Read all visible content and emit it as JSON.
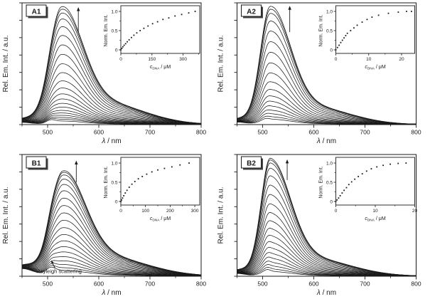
{
  "figure": {
    "background": "#ffffff",
    "line_color": "#1a1a1a",
    "text_color": "#1a1a1a"
  },
  "chart_data": [
    {
      "panel_label": "A1",
      "main": {
        "type": "line",
        "xlabel_symbol": "λ",
        "xlabel_rest": " / nm",
        "ylabel": "Rel. Em. Int. / a.u.",
        "xlim": [
          450,
          800
        ],
        "xticks": [
          500,
          600,
          700,
          800
        ],
        "xminor": [
          450,
          550,
          650,
          750
        ],
        "n_yticks": 8,
        "grid": false,
        "peak_nm": 527,
        "sigma_left": 22,
        "sigma_right": 40,
        "tail_weight": 0.22,
        "tail_sigma": 82,
        "scatter_bump": {
          "center": 506,
          "sigma": 8,
          "height": 0.022,
          "edge": 0.018,
          "edge_sigma": 18
        },
        "ymax_frac": 0.985,
        "amplitudes": [
          0.03,
          0.045,
          0.06,
          0.078,
          0.098,
          0.12,
          0.148,
          0.18,
          0.217,
          0.26,
          0.31,
          0.37,
          0.44,
          0.515,
          0.595,
          0.675,
          0.755,
          0.83,
          0.895,
          0.945,
          0.978,
          1.0
        ],
        "arrow": {
          "x_nm": 560,
          "y_from_frac": 0.76,
          "y_to_frac": 0.965
        },
        "annotation": null
      },
      "inset": {
        "type": "scatter",
        "ylabel": "Norm. Em. Int.",
        "xlabel_symbol": "c",
        "xlabel_sub": "DNA",
        "xlabel_rest": " / μM",
        "xlim": [
          0,
          380
        ],
        "xticks": [
          0,
          150,
          300
        ],
        "xminor": [
          75,
          225,
          375
        ],
        "yticks": [
          0,
          0.5,
          1.0
        ],
        "ytick_labels": [
          "0",
          "0.5",
          "1.0"
        ],
        "yminor": [
          0.25,
          0.75
        ],
        "x": [
          0,
          5,
          10,
          16,
          23,
          31,
          40,
          51,
          63,
          77,
          93,
          111,
          131,
          153,
          177,
          203,
          231,
          261,
          293,
          327,
          358
        ],
        "y": [
          0,
          0.04,
          0.08,
          0.12,
          0.16,
          0.21,
          0.26,
          0.32,
          0.38,
          0.44,
          0.5,
          0.56,
          0.62,
          0.68,
          0.73,
          0.79,
          0.83,
          0.88,
          0.92,
          0.96,
          1.0
        ]
      }
    },
    {
      "panel_label": "A2",
      "main": {
        "type": "line",
        "xlabel_symbol": "λ",
        "xlabel_rest": " / nm",
        "ylabel": "Rel. Em. Int. / a.u.",
        "xlim": [
          450,
          800
        ],
        "xticks": [
          500,
          600,
          700,
          800
        ],
        "xminor": [
          450,
          550,
          650,
          750
        ],
        "n_yticks": 8,
        "grid": false,
        "peak_nm": 515,
        "sigma_left": 19,
        "sigma_right": 38,
        "tail_weight": 0.17,
        "tail_sigma": 78,
        "scatter_bump": {
          "center": 505,
          "sigma": 7,
          "height": 0.012,
          "edge": 0.02,
          "edge_sigma": 16
        },
        "ymax_frac": 0.985,
        "amplitudes": [
          0.045,
          0.065,
          0.09,
          0.12,
          0.155,
          0.195,
          0.24,
          0.295,
          0.36,
          0.435,
          0.52,
          0.61,
          0.7,
          0.79,
          0.875,
          0.94,
          0.975,
          1.0
        ],
        "arrow": {
          "x_nm": 553,
          "y_from_frac": 0.76,
          "y_to_frac": 0.975
        },
        "annotation": null
      },
      "inset": {
        "type": "scatter",
        "ylabel": "Norm. Em. Int.",
        "xlabel_symbol": "c",
        "xlabel_sub": "DNA",
        "xlabel_rest": " / μM",
        "xlim": [
          0,
          24
        ],
        "xticks": [
          0,
          10,
          20
        ],
        "xminor": [
          5,
          15
        ],
        "yticks": [
          0,
          0.5,
          1.0
        ],
        "ytick_labels": [
          "0",
          "0.5",
          "1.0"
        ],
        "yminor": [
          0.25,
          0.75
        ],
        "x": [
          0,
          0.5,
          1,
          1.5,
          2,
          2.5,
          3,
          3.5,
          4.5,
          5.5,
          6.5,
          8,
          9.5,
          11,
          13,
          16,
          19,
          21.5,
          23
        ],
        "y": [
          0,
          0.06,
          0.12,
          0.19,
          0.25,
          0.31,
          0.37,
          0.43,
          0.5,
          0.57,
          0.64,
          0.72,
          0.79,
          0.85,
          0.9,
          0.95,
          0.98,
          1.0,
          1.0
        ]
      }
    },
    {
      "panel_label": "B1",
      "main": {
        "type": "line",
        "xlabel_symbol": "λ",
        "xlabel_rest": " / nm",
        "ylabel": "Rel. Em. Int. / a.u.",
        "xlim": [
          450,
          800
        ],
        "xticks": [
          500,
          600,
          700,
          800
        ],
        "xminor": [
          450,
          550,
          650,
          750
        ],
        "n_yticks": 8,
        "grid": false,
        "peak_nm": 530,
        "sigma_left": 23,
        "sigma_right": 42,
        "tail_weight": 0.22,
        "tail_sigma": 85,
        "scatter_bump": {
          "center": 506,
          "sigma": 9,
          "height": 0.05,
          "edge": 0.07,
          "edge_sigma": 22
        },
        "ymax_frac": 0.88,
        "amplitudes": [
          0.055,
          0.08,
          0.11,
          0.145,
          0.185,
          0.23,
          0.28,
          0.335,
          0.395,
          0.46,
          0.53,
          0.6,
          0.67,
          0.74,
          0.81,
          0.87,
          0.92,
          0.96,
          0.985,
          1.0
        ],
        "arrow": {
          "x_nm": 556,
          "y_from_frac": 0.77,
          "y_to_frac": 0.95
        },
        "annotation": {
          "text": "Rayleigh scattering",
          "text_x_nm": 478,
          "text_y_frac": 0.025,
          "tip_nm": 507,
          "tip_frac": 0.13
        }
      },
      "inset": {
        "type": "scatter",
        "ylabel": "Norm. Em. Int.",
        "xlabel_symbol": "c",
        "xlabel_sub": "DNA",
        "xlabel_rest": " / μM",
        "xlim": [
          0,
          320
        ],
        "xticks": [
          0,
          100,
          200,
          300
        ],
        "xminor": [
          50,
          150,
          250
        ],
        "yticks": [
          0,
          0.5,
          1.0
        ],
        "ytick_labels": [
          "0",
          "0.5",
          "1.0"
        ],
        "yminor": [
          0.25,
          0.75
        ],
        "x": [
          0,
          3,
          7,
          12,
          18,
          25,
          34,
          45,
          57,
          71,
          87,
          105,
          126,
          150,
          177,
          207,
          240,
          277
        ],
        "y": [
          0,
          0.04,
          0.09,
          0.15,
          0.22,
          0.29,
          0.37,
          0.45,
          0.52,
          0.59,
          0.65,
          0.71,
          0.77,
          0.82,
          0.86,
          0.9,
          0.95,
          1.0
        ]
      }
    },
    {
      "panel_label": "B2",
      "main": {
        "type": "line",
        "xlabel_symbol": "λ",
        "xlabel_rest": " / nm",
        "ylabel": "Rel. Em. Int. / a.u.",
        "xlim": [
          450,
          800
        ],
        "xticks": [
          500,
          600,
          700,
          800
        ],
        "xminor": [
          450,
          550,
          650,
          750
        ],
        "n_yticks": 8,
        "grid": false,
        "peak_nm": 515,
        "sigma_left": 18,
        "sigma_right": 38,
        "tail_weight": 0.17,
        "tail_sigma": 80,
        "scatter_bump": {
          "center": 508,
          "sigma": 7,
          "height": 0.02,
          "edge": 0.022,
          "edge_sigma": 16
        },
        "ymax_frac": 0.975,
        "amplitudes": [
          0.04,
          0.06,
          0.085,
          0.115,
          0.15,
          0.19,
          0.235,
          0.285,
          0.34,
          0.4,
          0.465,
          0.535,
          0.61,
          0.69,
          0.77,
          0.85,
          0.915,
          0.96,
          0.985,
          1.0
        ],
        "arrow": {
          "x_nm": 548,
          "y_from_frac": 0.79,
          "y_to_frac": 0.96
        },
        "annotation": null
      },
      "inset": {
        "type": "scatter",
        "ylabel": "Norm. Em. Int.",
        "xlabel_symbol": "c",
        "xlabel_sub": "DNA",
        "xlabel_rest": " / μM",
        "xlim": [
          0,
          20
        ],
        "xticks": [
          0,
          10,
          20
        ],
        "xminor": [
          5,
          15
        ],
        "yticks": [
          0,
          0.5,
          1.0
        ],
        "ytick_labels": [
          "0",
          "0.5",
          "1.0"
        ],
        "yminor": [
          0.25,
          0.75
        ],
        "x": [
          0,
          0.3,
          0.7,
          1.1,
          1.6,
          2.1,
          2.7,
          3.3,
          4,
          4.8,
          5.7,
          6.7,
          7.8,
          9,
          10.4,
          12,
          13.8,
          15.8,
          17.8
        ],
        "y": [
          0,
          0.04,
          0.09,
          0.15,
          0.22,
          0.29,
          0.36,
          0.44,
          0.51,
          0.58,
          0.65,
          0.72,
          0.79,
          0.85,
          0.9,
          0.94,
          0.97,
          0.99,
          1.0
        ]
      }
    }
  ]
}
